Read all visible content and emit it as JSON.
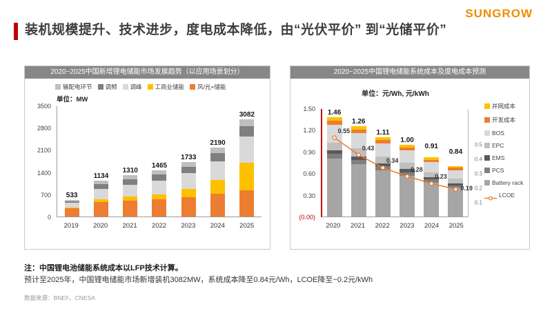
{
  "brand": {
    "logo_text": "SUNGROW",
    "color": "#F28C00"
  },
  "title": "装机规模提升、技术进步，度电成本降低，由“光伏平价” 到“光储平价”",
  "title_accent_color": "#C00000",
  "notes": {
    "note1": "注：中国锂电池储能系统成本以LFP技术计算。",
    "note2": "预计至2025年，中国锂电储能市场新增装机3082MW，系统成本降至0.84元/Wh，LCOE降至~0.2元/kWh",
    "source": "数据来源：BNEF、CNESA"
  },
  "chart_data": [
    {
      "type": "bar",
      "title": "2020~2025中国新增锂电储能市场发展趋势（以应用场景划分）",
      "unit_label": "单位：MW",
      "categories": [
        "2019",
        "2020",
        "2021",
        "2022",
        "2023",
        "2024",
        "2025"
      ],
      "totals": [
        533,
        1134,
        1310,
        1465,
        1733,
        2190,
        3082
      ],
      "total_labels": [
        "533",
        "1134",
        "1310",
        "1465",
        "1733",
        "2190",
        "3082"
      ],
      "ylim": [
        0,
        3500
      ],
      "yticks": [
        {
          "label": "3500",
          "value": 3500
        },
        {
          "label": "2800",
          "value": 2800
        },
        {
          "label": "2100",
          "value": 2100
        },
        {
          "label": "1400",
          "value": 1400
        },
        {
          "label": "700",
          "value": 700
        },
        {
          "label": "0",
          "value": 0
        }
      ],
      "legend": [
        {
          "key": "transmission",
          "label": "输配电环节",
          "color": "#BFBFBF"
        },
        {
          "key": "freq-regulation",
          "label": "调频",
          "color": "#7F7F7F"
        },
        {
          "key": "peak-shaving",
          "label": "调峰",
          "color": "#D9D9D9"
        },
        {
          "key": "ci-storage",
          "label": "工商业储能",
          "color": "#FFC000"
        },
        {
          "key": "wind-solar-storage",
          "label": "风/光+储能",
          "color": "#ED7D31"
        }
      ],
      "series": [
        {
          "key": "wind-solar-storage",
          "name": "风/光+储能",
          "color": "#ED7D31",
          "values": [
            260,
            450,
            500,
            540,
            620,
            730,
            830
          ]
        },
        {
          "key": "ci-storage",
          "name": "工商业储能",
          "color": "#FFC000",
          "values": [
            25,
            90,
            130,
            170,
            250,
            430,
            870
          ]
        },
        {
          "key": "peak-shaving",
          "name": "调峰",
          "color": "#D9D9D9",
          "values": [
            150,
            330,
            380,
            430,
            500,
            600,
            830
          ]
        },
        {
          "key": "freq-regulation",
          "name": "调频",
          "color": "#7F7F7F",
          "values": [
            55,
            150,
            170,
            185,
            200,
            250,
            330
          ]
        },
        {
          "key": "transmission",
          "name": "输配电环节",
          "color": "#BFBFBF",
          "values": [
            43,
            114,
            130,
            140,
            163,
            180,
            222
          ]
        }
      ]
    },
    {
      "type": "bar+line",
      "title": "2020~2025中国锂电储能系统成本及度电成本预测",
      "unit_label": "单位：元/Wh, 元/kWh",
      "categories": [
        "2020",
        "2021",
        "2022",
        "2023",
        "2024",
        "2025"
      ],
      "totals": [
        1.46,
        1.26,
        1.11,
        1.0,
        0.91,
        0.84
      ],
      "total_labels": [
        "1.46",
        "1.26",
        "1.11",
        "1.00",
        "0.91",
        "0.84"
      ],
      "ylim": [
        0,
        1.5
      ],
      "yticks": [
        {
          "label": "1.50",
          "value": 1.5
        },
        {
          "label": "1.20",
          "value": 1.2
        },
        {
          "label": "0.90",
          "value": 0.9
        },
        {
          "label": "0.60",
          "value": 0.6
        },
        {
          "label": "0.30",
          "value": 0.3
        },
        {
          "label": "(0.00)",
          "value": 0,
          "color": "#C00000"
        }
      ],
      "right_axis": {
        "scale_max": 0.75,
        "ticks": [
          {
            "label": "0.5",
            "value": 0.5
          },
          {
            "label": "0.4",
            "value": 0.4
          },
          {
            "label": "0.3",
            "value": 0.3
          },
          {
            "label": "0.2",
            "value": 0.2
          },
          {
            "label": "0.1",
            "value": 0.1
          }
        ]
      },
      "legend": [
        {
          "key": "grid-cost",
          "label": "并网成本",
          "color": "#FFC000"
        },
        {
          "key": "dev-cost",
          "label": "开发成本",
          "color": "#ED7D31"
        },
        {
          "key": "bos",
          "label": "BOS",
          "color": "#D9D9D9"
        },
        {
          "key": "epc",
          "label": "EPC",
          "color": "#BFBFBF"
        },
        {
          "key": "ems",
          "label": "EMS",
          "color": "#595959"
        },
        {
          "key": "pcs",
          "label": "PCS",
          "color": "#7F7F7F"
        },
        {
          "key": "battery-rack",
          "label": "Battery rack",
          "color": "#A6A6A6"
        },
        {
          "key": "lcoe",
          "label": "LCOE",
          "color": "#ED7D31",
          "type": "line"
        }
      ],
      "series": [
        {
          "key": "battery-rack",
          "name": "Battery rack",
          "color": "#A6A6A6",
          "values": [
            0.85,
            0.73,
            0.64,
            0.57,
            0.52,
            0.48
          ]
        },
        {
          "key": "pcs",
          "name": "PCS",
          "color": "#7F7F7F",
          "values": [
            0.07,
            0.06,
            0.06,
            0.05,
            0.05,
            0.04
          ]
        },
        {
          "key": "ems",
          "name": "EMS",
          "color": "#595959",
          "values": [
            0.05,
            0.05,
            0.04,
            0.04,
            0.03,
            0.03
          ]
        },
        {
          "key": "epc",
          "name": "EPC",
          "color": "#BFBFBF",
          "values": [
            0.12,
            0.11,
            0.1,
            0.09,
            0.08,
            0.08
          ]
        },
        {
          "key": "bos",
          "name": "BOS",
          "color": "#D9D9D9",
          "values": [
            0.26,
            0.21,
            0.18,
            0.17,
            0.15,
            0.14
          ]
        },
        {
          "key": "dev-cost",
          "name": "开发成本",
          "color": "#ED7D31",
          "values": [
            0.06,
            0.05,
            0.05,
            0.04,
            0.04,
            0.04
          ]
        },
        {
          "key": "grid-cost",
          "name": "并网成本",
          "color": "#FFC000",
          "values": [
            0.05,
            0.05,
            0.04,
            0.04,
            0.04,
            0.03
          ]
        }
      ],
      "line": {
        "name": "LCOE",
        "color": "#ED7D31",
        "values": [
          0.55,
          0.43,
          0.34,
          0.28,
          0.23,
          0.19
        ],
        "labels": [
          "0.55",
          "0.43",
          "0.34",
          "0.28",
          "0.23",
          "0.19"
        ]
      }
    }
  ]
}
